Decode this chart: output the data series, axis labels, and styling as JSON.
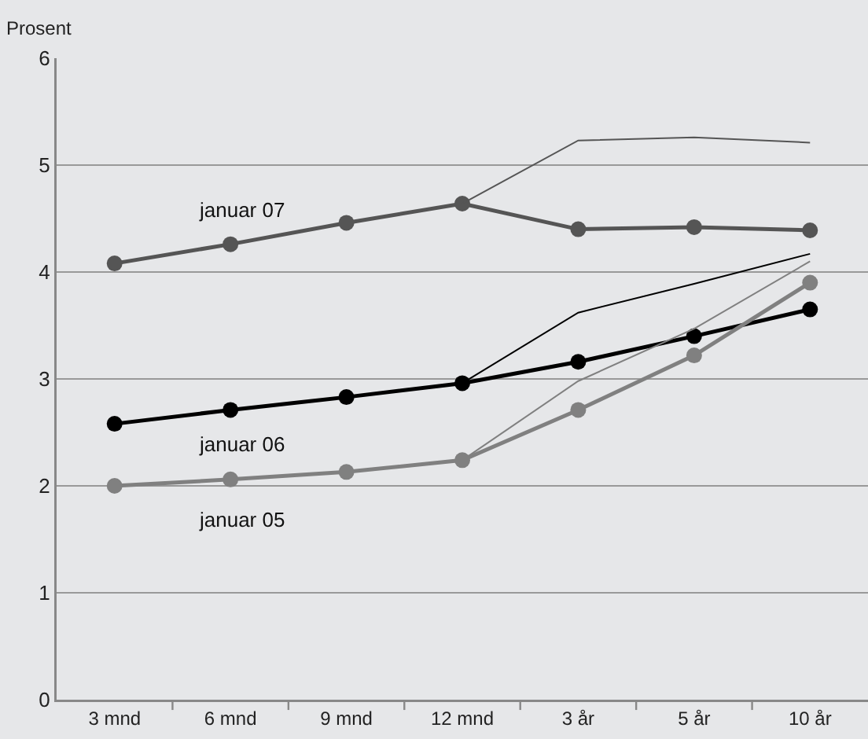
{
  "chart_data": {
    "type": "line",
    "ylabel": "Prosent",
    "categories": [
      "3 mnd",
      "6 mnd",
      "9 mnd",
      "12 mnd",
      "3 år",
      "5 år",
      "10 år"
    ],
    "series": [
      {
        "name": "januar 07",
        "color": "#555555",
        "marker": "circle",
        "values": [
          4.08,
          4.26,
          4.46,
          4.64,
          4.4,
          4.42,
          4.39
        ]
      },
      {
        "name": "januar 06",
        "color": "#000000",
        "marker": "circle",
        "values": [
          2.58,
          2.71,
          2.83,
          2.96,
          3.16,
          3.4,
          3.65
        ]
      },
      {
        "name": "januar 05",
        "color": "#808080",
        "marker": "circle",
        "values": [
          2.0,
          2.06,
          2.13,
          2.24,
          2.71,
          3.22,
          3.9
        ]
      },
      {
        "color": "#555555",
        "marker": "none",
        "values": [
          null,
          null,
          null,
          4.64,
          5.23,
          5.26,
          5.21
        ]
      },
      {
        "color": "#000000",
        "marker": "none",
        "values": [
          null,
          null,
          null,
          2.96,
          3.62,
          3.89,
          4.17
        ]
      },
      {
        "color": "#808080",
        "marker": "none",
        "values": [
          null,
          null,
          null,
          2.24,
          2.98,
          3.47,
          4.1
        ]
      }
    ],
    "ylim": [
      0,
      6
    ],
    "yticks": [
      0,
      1,
      2,
      3,
      4,
      5,
      6
    ],
    "grid": "y",
    "legend": false
  }
}
